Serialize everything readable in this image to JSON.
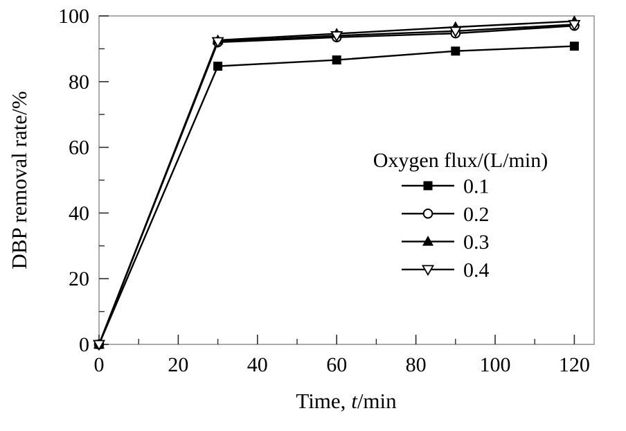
{
  "figure": {
    "background": "#ffffff"
  },
  "chart_data": {
    "type": "line",
    "title": "",
    "xlabel": "Time, t/min",
    "xlabel_parts": {
      "prefix": "Time, ",
      "variable": "t",
      "suffix": "/min"
    },
    "ylabel": "DBP removal rate/%",
    "x": [
      0,
      30,
      60,
      90,
      120
    ],
    "series": [
      {
        "name": "0.1",
        "marker": "square-filled",
        "values": [
          0,
          84.7,
          86.6,
          89.3,
          90.8
        ]
      },
      {
        "name": "0.2",
        "marker": "circle-open",
        "values": [
          0,
          92.0,
          93.5,
          94.7,
          97.0
        ]
      },
      {
        "name": "0.3",
        "marker": "triangle-up-filled",
        "values": [
          0,
          92.6,
          94.6,
          96.6,
          98.4
        ]
      },
      {
        "name": "0.4",
        "marker": "triangle-down-open",
        "values": [
          0,
          92.2,
          94.0,
          95.4,
          97.4
        ]
      }
    ],
    "legend": {
      "title": "Oxygen flux/(L/min)",
      "entries": [
        "0.1",
        "0.2",
        "0.3",
        "0.4"
      ],
      "position": "inside-right"
    },
    "xlim": [
      0,
      125
    ],
    "ylim": [
      0,
      100
    ],
    "x_major_ticks": [
      0,
      20,
      40,
      60,
      80,
      100,
      120
    ],
    "x_minor_ticks": [
      10,
      30,
      50,
      70,
      90,
      110
    ],
    "y_major_ticks": [
      0,
      20,
      40,
      60,
      80,
      100
    ],
    "y_minor_ticks": [
      10,
      30,
      50,
      70,
      90
    ],
    "grid": false,
    "colors": {
      "series": "#000000",
      "frame": "#8f8f8f",
      "tick": "#2b2b2b",
      "text": "#000000",
      "background": "#ffffff"
    }
  }
}
